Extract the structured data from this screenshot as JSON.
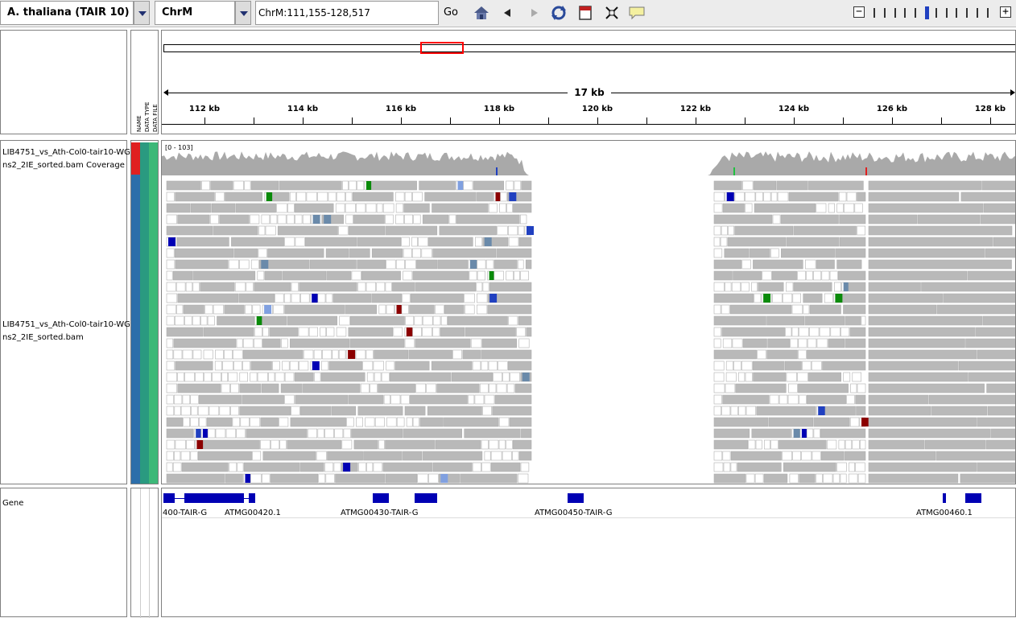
{
  "toolbar": {
    "genome": "A. thaliana (TAIR 10)",
    "chromosome": "ChrM",
    "locus": "ChrM:111,155-128,517",
    "go_label": "Go",
    "icons": [
      "home-icon",
      "back-icon",
      "forward-icon",
      "refresh-icon",
      "roi-icon",
      "resize-icon",
      "popup-text-icon"
    ],
    "zoom_out": "−",
    "zoom_in": "+"
  },
  "header": {
    "attr_labels": [
      "NAME",
      "DATA TYPE",
      "DATA FILE"
    ]
  },
  "ruler": {
    "span": "17 kb",
    "ticks": [
      "112 kb",
      "114 kb",
      "116 kb",
      "118 kb",
      "120 kb",
      "122 kb",
      "124 kb",
      "126 kb",
      "128 kb"
    ]
  },
  "tracks": {
    "coverage_name": "LIB4751_vs_Ath-Col0-tair10-WGns2_2IE_sorted.bam Coverage",
    "coverage_name_line1": "LIB4751_vs_Ath-Col0-tair10-WG",
    "coverage_name_line2": "ns2_2IE_sorted.bam Coverage",
    "coverage_range": "[0 - 103]",
    "alignment_name_line1": "LIB4751_vs_Ath-Col0-tair10-WG",
    "alignment_name_line2": "ns2_2IE_sorted.bam",
    "gene_name": "Gene"
  },
  "genes": [
    {
      "label": "400-TAIR-G"
    },
    {
      "label": "ATMG00420.1"
    },
    {
      "label": "ATMG00430-TAIR-G"
    },
    {
      "label": "ATMG00450-TAIR-G"
    },
    {
      "label": "ATMG00460.1"
    }
  ],
  "colors": {
    "gene": "#0000b4",
    "read": "#b9b9b9",
    "coverage": "#a9a9a9",
    "region_box": "#ff0000",
    "attr_red": "#e02020",
    "attr_blue": "#2c6eaa",
    "attr_teal": "#2a9a80",
    "attr_green": "#3cb878"
  }
}
